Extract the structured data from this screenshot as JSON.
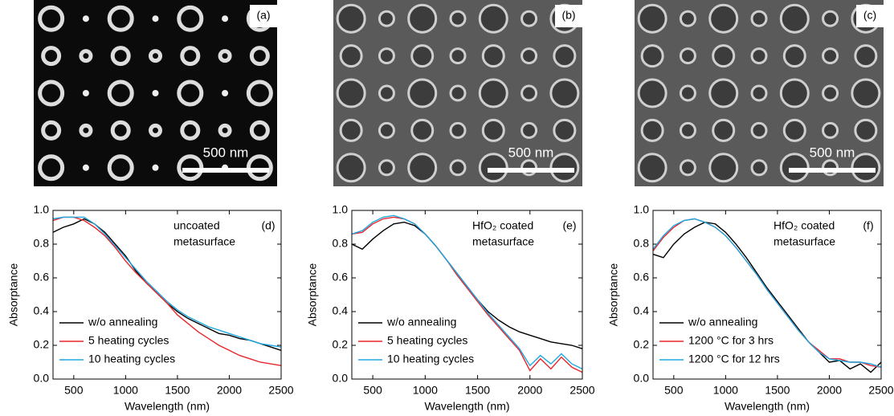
{
  "images": [
    {
      "label": "(a)",
      "scale_bar": "500 nm"
    },
    {
      "label": "(b)",
      "scale_bar": "500 nm"
    },
    {
      "label": "(c)",
      "scale_bar": "500 nm"
    }
  ],
  "chart_data": [
    {
      "type": "line",
      "panel_label": "(d)",
      "annotation": [
        "uncoated",
        "metasurface"
      ],
      "xlabel": "Wavelength (nm)",
      "ylabel": "Absorptance",
      "x": [
        300,
        400,
        500,
        600,
        700,
        800,
        900,
        1000,
        1100,
        1200,
        1300,
        1400,
        1500,
        1600,
        1700,
        1800,
        1900,
        2000,
        2100,
        2200,
        2300,
        2400,
        2500
      ],
      "xlim": [
        300,
        2500
      ],
      "ylim": [
        0,
        1
      ],
      "xticks": [
        500,
        1000,
        1500,
        2000,
        2500
      ],
      "yticks": [
        {
          "value": 0,
          "label": "0.0"
        },
        0.2,
        0.4,
        0.6,
        0.8,
        {
          "value": 1,
          "label": "1.0"
        }
      ],
      "series": [
        {
          "name": "w/o annealing",
          "color": "#000000",
          "values": [
            0.87,
            0.9,
            0.92,
            0.95,
            0.92,
            0.87,
            0.8,
            0.73,
            0.64,
            0.57,
            0.51,
            0.45,
            0.4,
            0.36,
            0.33,
            0.3,
            0.27,
            0.26,
            0.24,
            0.23,
            0.21,
            0.19,
            0.17
          ]
        },
        {
          "name": "5 heating cycles",
          "color": "#e8262b",
          "values": [
            0.94,
            0.96,
            0.96,
            0.94,
            0.9,
            0.85,
            0.78,
            0.7,
            0.63,
            0.57,
            0.51,
            0.45,
            0.38,
            0.33,
            0.28,
            0.24,
            0.2,
            0.17,
            0.14,
            0.12,
            0.1,
            0.09,
            0.08
          ]
        },
        {
          "name": "10 heating cycles",
          "color": "#1ea7e1",
          "values": [
            0.95,
            0.96,
            0.96,
            0.96,
            0.92,
            0.86,
            0.79,
            0.72,
            0.65,
            0.58,
            0.52,
            0.46,
            0.41,
            0.37,
            0.34,
            0.31,
            0.29,
            0.27,
            0.25,
            0.23,
            0.21,
            0.2,
            0.19
          ]
        }
      ]
    },
    {
      "type": "line",
      "panel_label": "(e)",
      "annotation": [
        "HfO₂ coated",
        "metasurface"
      ],
      "xlabel": "Wavelength (nm)",
      "ylabel": "Absorptance",
      "x": [
        300,
        400,
        500,
        600,
        700,
        800,
        900,
        1000,
        1100,
        1200,
        1300,
        1400,
        1500,
        1600,
        1700,
        1800,
        1900,
        2000,
        2100,
        2200,
        2300,
        2400,
        2500
      ],
      "xlim": [
        300,
        2500
      ],
      "ylim": [
        0,
        1
      ],
      "xticks": [
        500,
        1000,
        1500,
        2000,
        2500
      ],
      "yticks": [
        {
          "value": 0,
          "label": "0.0"
        },
        0.2,
        0.4,
        0.6,
        0.8,
        {
          "value": 1,
          "label": "1.0"
        }
      ],
      "series": [
        {
          "name": "w/o annealing",
          "color": "#000000",
          "values": [
            0.8,
            0.77,
            0.83,
            0.88,
            0.92,
            0.93,
            0.91,
            0.86,
            0.79,
            0.71,
            0.63,
            0.55,
            0.47,
            0.4,
            0.35,
            0.31,
            0.28,
            0.26,
            0.24,
            0.22,
            0.21,
            0.2,
            0.18
          ]
        },
        {
          "name": "5 heating cycles",
          "color": "#e8262b",
          "values": [
            0.86,
            0.87,
            0.92,
            0.95,
            0.96,
            0.95,
            0.92,
            0.86,
            0.79,
            0.71,
            0.62,
            0.54,
            0.46,
            0.38,
            0.31,
            0.24,
            0.17,
            0.05,
            0.12,
            0.06,
            0.13,
            0.07,
            0.04
          ]
        },
        {
          "name": "10 heating cycles",
          "color": "#1ea7e1",
          "values": [
            0.86,
            0.88,
            0.93,
            0.96,
            0.97,
            0.95,
            0.92,
            0.86,
            0.79,
            0.71,
            0.63,
            0.55,
            0.47,
            0.39,
            0.32,
            0.25,
            0.18,
            0.08,
            0.14,
            0.09,
            0.15,
            0.09,
            0.06
          ]
        }
      ]
    },
    {
      "type": "line",
      "panel_label": "(f)",
      "annotation": [
        "HfO₂ coated",
        "metasurface"
      ],
      "xlabel": "Wavelength (nm)",
      "ylabel": "Absorptance",
      "x": [
        300,
        400,
        500,
        600,
        700,
        800,
        900,
        1000,
        1100,
        1200,
        1300,
        1400,
        1500,
        1600,
        1700,
        1800,
        1900,
        2000,
        2100,
        2200,
        2300,
        2400,
        2500
      ],
      "xlim": [
        300,
        2500
      ],
      "ylim": [
        0,
        1
      ],
      "xticks": [
        500,
        1000,
        1500,
        2000,
        2500
      ],
      "yticks": [
        {
          "value": 0,
          "label": "0.0"
        },
        0.2,
        0.4,
        0.6,
        0.8,
        {
          "value": 1,
          "label": "1.0"
        }
      ],
      "series": [
        {
          "name": "w/o annealing",
          "color": "#000000",
          "values": [
            0.74,
            0.72,
            0.8,
            0.86,
            0.9,
            0.93,
            0.92,
            0.87,
            0.8,
            0.72,
            0.63,
            0.54,
            0.46,
            0.38,
            0.3,
            0.22,
            0.16,
            0.1,
            0.11,
            0.06,
            0.09,
            0.04,
            0.1
          ]
        },
        {
          "name": "1200 °C for 3 hrs",
          "color": "#e8262b",
          "values": [
            0.76,
            0.84,
            0.9,
            0.94,
            0.95,
            0.93,
            0.9,
            0.85,
            0.78,
            0.7,
            0.62,
            0.53,
            0.45,
            0.37,
            0.29,
            0.22,
            0.17,
            0.12,
            0.12,
            0.1,
            0.1,
            0.08,
            0.07
          ]
        },
        {
          "name": "1200 °C for 12 hrs",
          "color": "#1ea7e1",
          "values": [
            0.77,
            0.85,
            0.91,
            0.94,
            0.95,
            0.93,
            0.9,
            0.85,
            0.78,
            0.7,
            0.62,
            0.53,
            0.45,
            0.37,
            0.29,
            0.22,
            0.16,
            0.12,
            0.11,
            0.1,
            0.1,
            0.09,
            0.07
          ]
        }
      ]
    }
  ]
}
